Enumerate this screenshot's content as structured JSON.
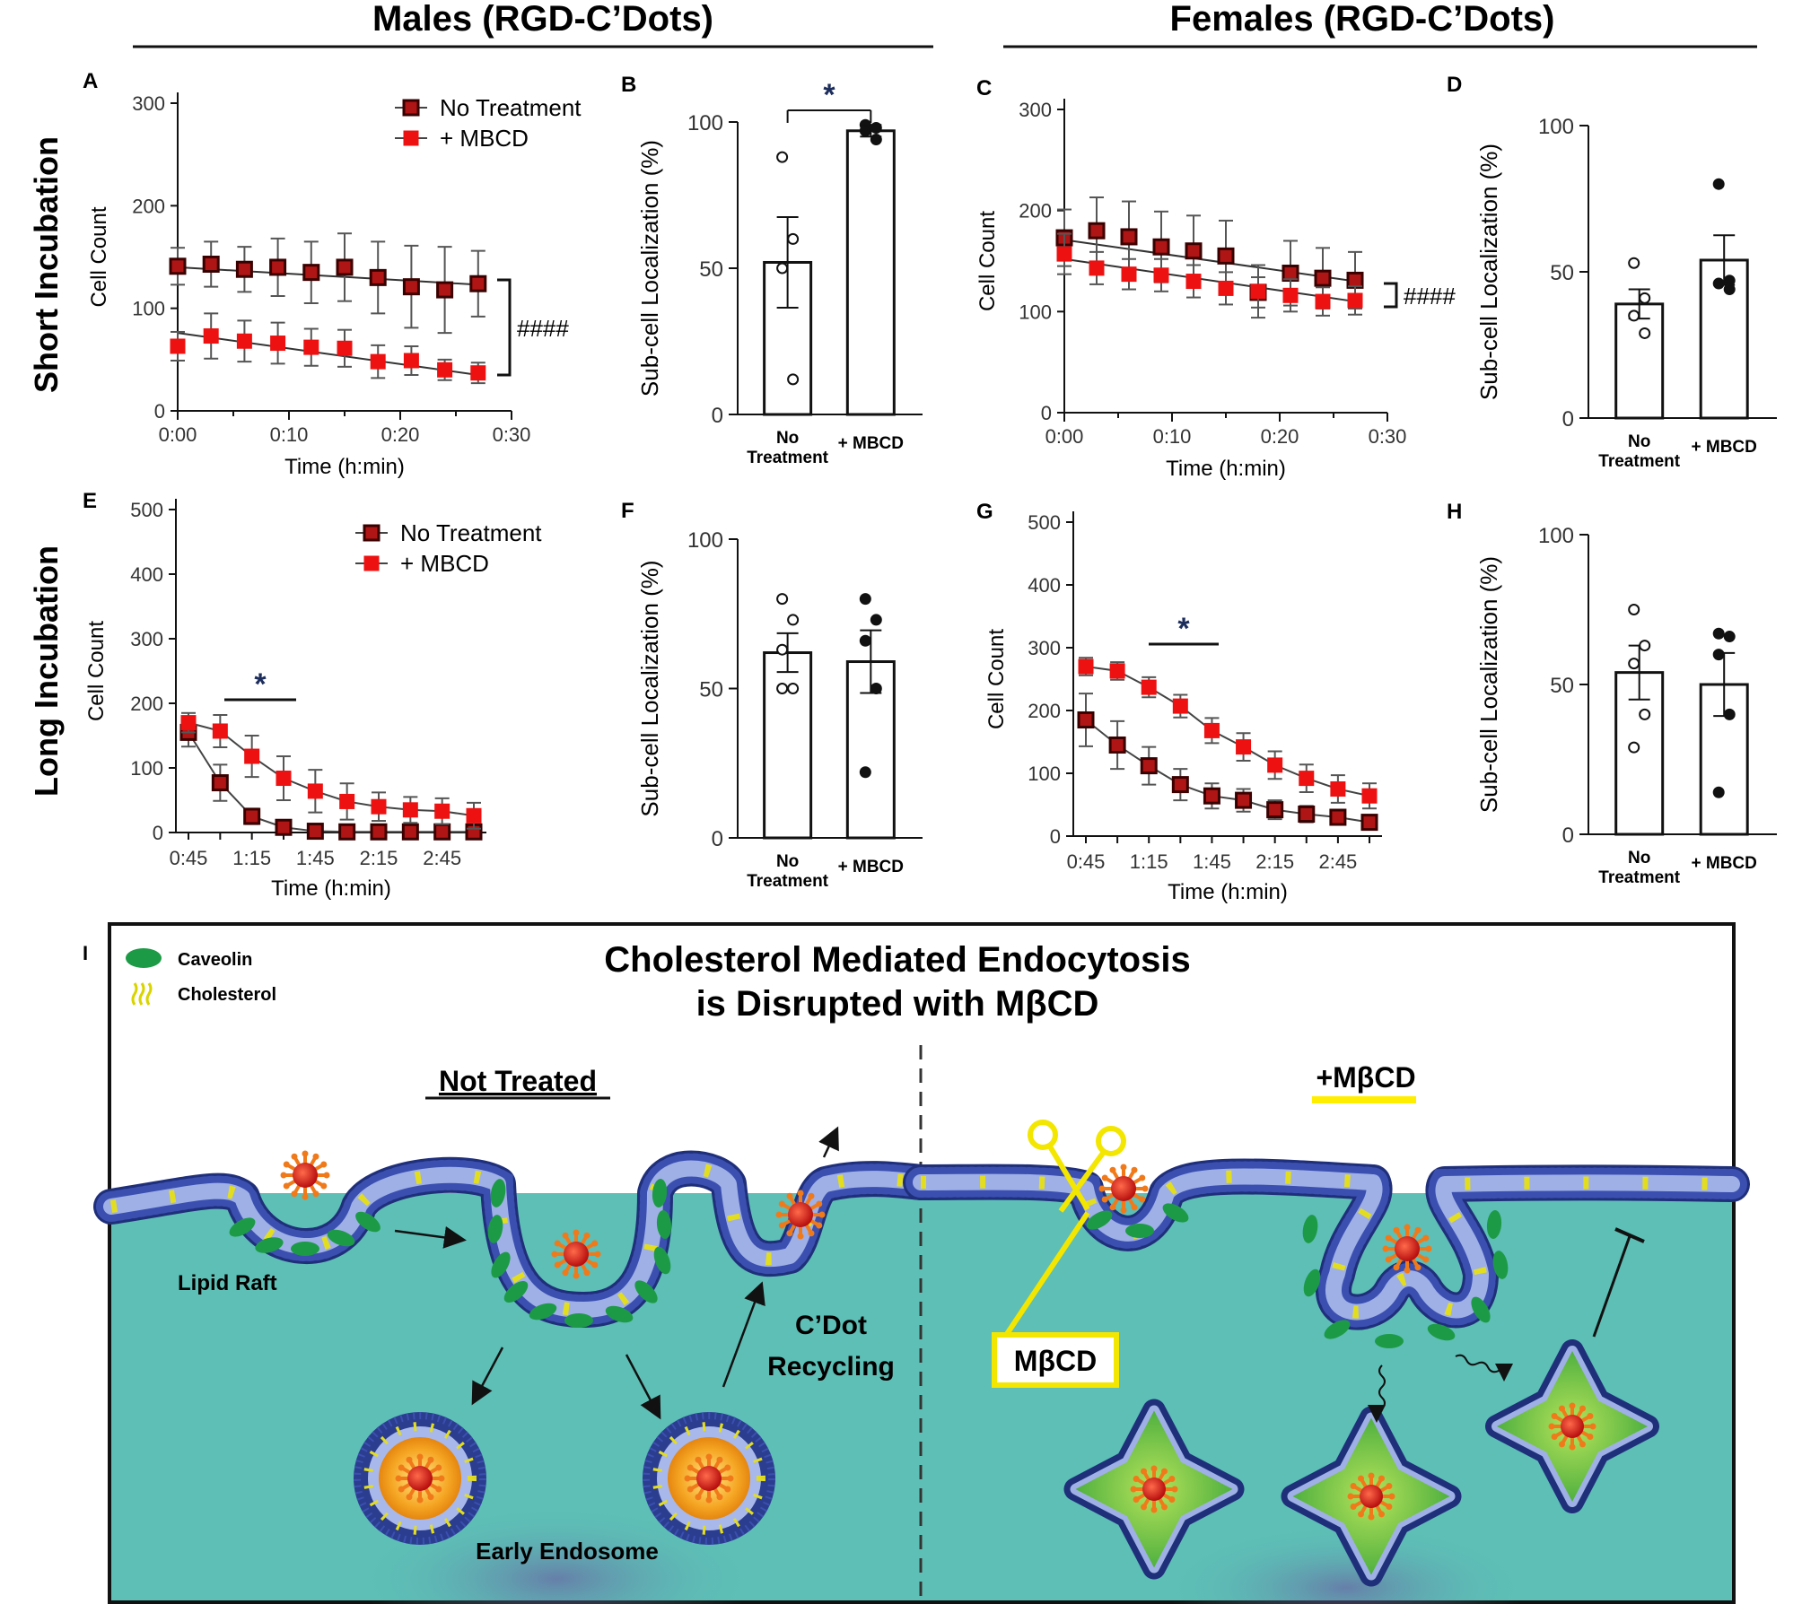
{
  "headers": {
    "males": "Males (RGD-C’Dots)",
    "females": "Females (RGD-C’Dots)",
    "short": "Short Incubation",
    "long": "Long Incubation"
  },
  "colors": {
    "no_treatment": "#b01515",
    "mbcd": "#ee1111",
    "cytoplasm": "#5dbfb6",
    "caveolin": "#1d9a46",
    "cholesterol": "#f1ee35",
    "membrane": "#2b3d8f",
    "nanoparticle": "#d8241a",
    "endosome": "#f5a623",
    "highlight": "#ffee00"
  },
  "chart_data": [
    {
      "panel": "A",
      "type": "line",
      "xlabel": "Time (h:min)",
      "ylabel": "Cell Count",
      "x_ticks": [
        "0:00",
        "0:10",
        "0:20",
        "0:30"
      ],
      "x": [
        0,
        3,
        6,
        9,
        12,
        15,
        18,
        21,
        24,
        27
      ],
      "xlim": [
        0,
        30
      ],
      "ylim": [
        0,
        300
      ],
      "y_ticks": [
        0,
        100,
        200,
        300
      ],
      "series": [
        {
          "name": "No Treatment",
          "marker": "square-outlined",
          "values": [
            141,
            143,
            138,
            140,
            135,
            140,
            130,
            121,
            118,
            124
          ],
          "errors": [
            18,
            22,
            22,
            28,
            30,
            33,
            35,
            40,
            42,
            32
          ],
          "fit": [
            140,
            123
          ]
        },
        {
          "name": "+ MBCD",
          "marker": "square",
          "values": [
            63,
            73,
            68,
            66,
            62,
            61,
            48,
            49,
            40,
            37
          ],
          "errors": [
            14,
            22,
            20,
            20,
            18,
            18,
            16,
            14,
            10,
            10
          ],
          "fit": [
            76,
            35
          ]
        }
      ],
      "legend": "top-right",
      "annotation": "####"
    },
    {
      "panel": "B",
      "type": "bar",
      "ylabel": "Sub-cell Localization (%)",
      "categories": [
        "No Treatment",
        "+ MBCD"
      ],
      "values": [
        52,
        97
      ],
      "errors": [
        15.5,
        2
      ],
      "points": [
        [
          88,
          60,
          50,
          12
        ],
        [
          99,
          98,
          97,
          94
        ]
      ],
      "ylim": [
        0,
        100
      ],
      "y_ticks": [
        0,
        50,
        100
      ],
      "annotation": "*"
    },
    {
      "panel": "C",
      "type": "line",
      "xlabel": "Time (h:min)",
      "ylabel": "Cell Count",
      "x_ticks": [
        "0:00",
        "0:10",
        "0:20",
        "0:30"
      ],
      "x": [
        0,
        3,
        6,
        9,
        12,
        15,
        18,
        21,
        24,
        27
      ],
      "xlim": [
        0,
        30
      ],
      "ylim": [
        0,
        300
      ],
      "y_ticks": [
        0,
        100,
        200,
        300
      ],
      "series": [
        {
          "name": "No Treatment",
          "marker": "square-outlined",
          "values": [
            173,
            180,
            174,
            164,
            160,
            155,
            119,
            138,
            133,
            131
          ],
          "errors": [
            28,
            33,
            35,
            35,
            35,
            35,
            15,
            32,
            30,
            28
          ],
          "fit": [
            171,
            130
          ]
        },
        {
          "name": "+ MBCD",
          "marker": "square",
          "values": [
            157,
            143,
            137,
            136,
            130,
            123,
            120,
            116,
            110,
            111
          ],
          "errors": [
            20,
            16,
            15,
            16,
            16,
            16,
            26,
            16,
            14,
            14
          ],
          "fit": [
            152,
            110
          ]
        }
      ],
      "annotation": "####"
    },
    {
      "panel": "D",
      "type": "bar",
      "ylabel": "Sub-cell Localization (%)",
      "categories": [
        "No Treatment",
        "+ MBCD"
      ],
      "values": [
        39,
        54
      ],
      "errors": [
        5,
        8.5
      ],
      "points": [
        [
          53,
          41,
          35,
          29
        ],
        [
          80,
          47,
          46,
          44
        ]
      ],
      "ylim": [
        0,
        100
      ],
      "y_ticks": [
        0,
        50,
        100
      ]
    },
    {
      "panel": "E",
      "type": "line",
      "xlabel": "Time (h:min)",
      "ylabel": "Cell Count",
      "x_ticks": [
        "0:45",
        "1:15",
        "1:45",
        "2:15",
        "2:45"
      ],
      "x": [
        "0:45",
        "1:00",
        "1:15",
        "1:30",
        "1:45",
        "2:00",
        "2:15",
        "2:30",
        "2:45",
        "3:00"
      ],
      "ylim": [
        0,
        500
      ],
      "y_ticks": [
        0,
        100,
        200,
        300,
        400,
        500
      ],
      "series": [
        {
          "name": "No Treatment",
          "marker": "square-outlined",
          "values": [
            155,
            77,
            25,
            8,
            2,
            1,
            1,
            1,
            1,
            1
          ],
          "errors": [
            22,
            28,
            12,
            6,
            3,
            2,
            2,
            2,
            2,
            2
          ]
        },
        {
          "name": "+ MBCD",
          "marker": "square",
          "values": [
            170,
            157,
            118,
            84,
            64,
            48,
            40,
            35,
            33,
            26
          ],
          "errors": [
            15,
            25,
            32,
            34,
            33,
            28,
            22,
            20,
            20,
            20
          ]
        }
      ],
      "legend": "top-right",
      "annotation": "*"
    },
    {
      "panel": "F",
      "type": "bar",
      "ylabel": "Sub-cell Localization (%)",
      "categories": [
        "No Treatment",
        "+ MBCD"
      ],
      "values": [
        62,
        59
      ],
      "errors": [
        6.5,
        10.5
      ],
      "points": [
        [
          80,
          73,
          63,
          50,
          50
        ],
        [
          80,
          73,
          66,
          50,
          22
        ]
      ],
      "ylim": [
        0,
        100
      ],
      "y_ticks": [
        0,
        50,
        100
      ]
    },
    {
      "panel": "G",
      "type": "line",
      "xlabel": "Time (h:min)",
      "ylabel": "Cell Count",
      "x_ticks": [
        "0:45",
        "1:15",
        "1:45",
        "2:15",
        "2:45"
      ],
      "x": [
        "0:45",
        "1:00",
        "1:15",
        "1:30",
        "1:45",
        "2:00",
        "2:15",
        "2:30",
        "2:45",
        "3:00"
      ],
      "ylim": [
        0,
        500
      ],
      "y_ticks": [
        0,
        100,
        200,
        300,
        400,
        500
      ],
      "series": [
        {
          "name": "No Treatment",
          "marker": "square-outlined",
          "values": [
            185,
            145,
            112,
            82,
            64,
            57,
            42,
            35,
            30,
            22
          ],
          "errors": [
            42,
            38,
            30,
            25,
            20,
            18,
            15,
            13,
            12,
            10
          ]
        },
        {
          "name": "+ MBCD",
          "marker": "square",
          "values": [
            270,
            263,
            237,
            207,
            168,
            142,
            113,
            92,
            75,
            64
          ],
          "errors": [
            14,
            14,
            16,
            18,
            20,
            22,
            22,
            22,
            22,
            20
          ]
        }
      ],
      "annotation": "*"
    },
    {
      "panel": "H",
      "type": "bar",
      "ylabel": "Sub-cell Localization (%)",
      "categories": [
        "No Treatment",
        "+ MBCD"
      ],
      "values": [
        54,
        50
      ],
      "errors": [
        9,
        10.5
      ],
      "points": [
        [
          75,
          63,
          57,
          40,
          29
        ],
        [
          67,
          66,
          60,
          40,
          14
        ]
      ],
      "ylim": [
        0,
        100
      ],
      "y_ticks": [
        0,
        50,
        100
      ]
    }
  ],
  "diagram": {
    "panel": "I",
    "title_line1": "Cholesterol Mediated Endocytosis",
    "title_line2": "is Disrupted with MβCD",
    "legend": {
      "caveolin": "Caveolin",
      "cholesterol": "Cholesterol"
    },
    "not_treated": "Not Treated",
    "treated": "+MβCD",
    "lipid_raft": "Lipid Raft",
    "recycling_line1": "C’Dot",
    "recycling_line2": "Recycling",
    "early_endosome": "Early Endosome",
    "drug_box": "MβCD"
  }
}
